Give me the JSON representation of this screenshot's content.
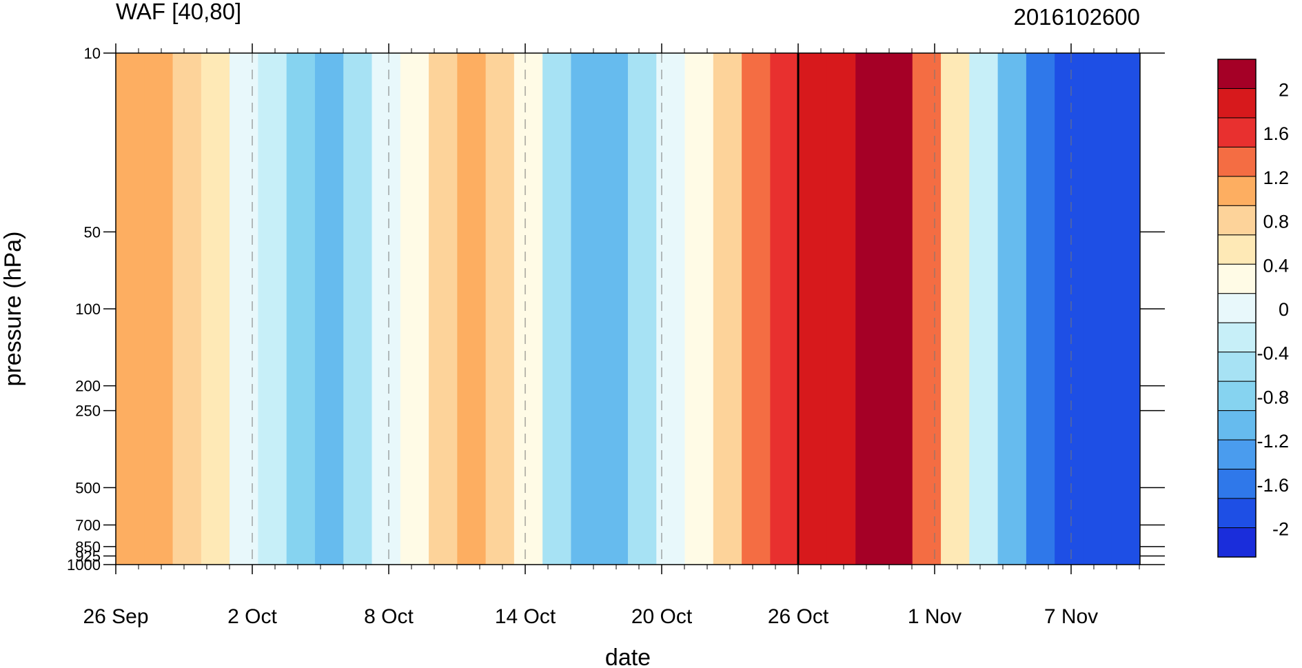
{
  "chart_data": {
    "type": "heatmap",
    "title": "WAF [40,80]",
    "subtitle": "2016102600",
    "xlabel": "date",
    "ylabel": "pressure (hPa)",
    "x_ticks": [
      "26 Sep",
      "2 Oct",
      "8 Oct",
      "14 Oct",
      "20 Oct",
      "26 Oct",
      "1 Nov",
      "7 Nov"
    ],
    "x_range": [
      "2016-09-26",
      "2016-11-10"
    ],
    "y_ticks": [
      "10",
      "50",
      "100",
      "200",
      "250",
      "500",
      "700",
      "850",
      "925",
      "1000"
    ],
    "y_scale": "log",
    "y_range": [
      1000,
      10
    ],
    "vertical_line": "26 Oct",
    "colorbar": {
      "labels": [
        "2",
        "1.6",
        "1.2",
        "0.8",
        "0.4",
        "0",
        "-0.4",
        "-0.8",
        "-1.2",
        "-1.6",
        "-2"
      ],
      "colors": [
        "#a50026",
        "#d7191c",
        "#e8302f",
        "#f46d43",
        "#fdae61",
        "#fdd39a",
        "#fee9b6",
        "#fffbe6",
        "#e8f8fb",
        "#c7eff8",
        "#a7e2f4",
        "#86d3f0",
        "#66bbee",
        "#4a9cee",
        "#2f78ea",
        "#1e4fe5",
        "#1a2ddb"
      ]
    },
    "series": [
      {
        "x": "2016-09-27",
        "max": 1.0
      },
      {
        "x": "2016-09-30",
        "max": 0.6
      },
      {
        "x": "2016-10-05",
        "min": -1.0
      },
      {
        "x": "2016-10-12",
        "max": 1.2
      },
      {
        "x": "2016-10-17",
        "min": -1.2
      },
      {
        "x": "2016-10-25",
        "max": 1.4
      },
      {
        "x": "2016-10-30",
        "max": 2.2
      },
      {
        "x": "2016-11-06",
        "min": -1.8
      }
    ]
  }
}
